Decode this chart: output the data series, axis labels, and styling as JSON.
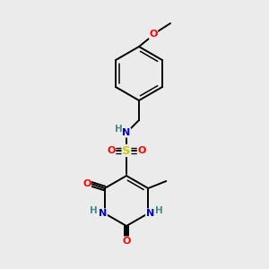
{
  "bg_color": "#ebebeb",
  "bond_color": "#000000",
  "atom_colors": {
    "O": "#ff0000",
    "N": "#0000cd",
    "S": "#cccc00",
    "H": "#4a8a8a",
    "C": "#000000"
  },
  "figsize": [
    3.0,
    3.0
  ],
  "dpi": 100,
  "bond_lw": 1.4,
  "inner_lw": 1.1,
  "font_size": 7.5
}
